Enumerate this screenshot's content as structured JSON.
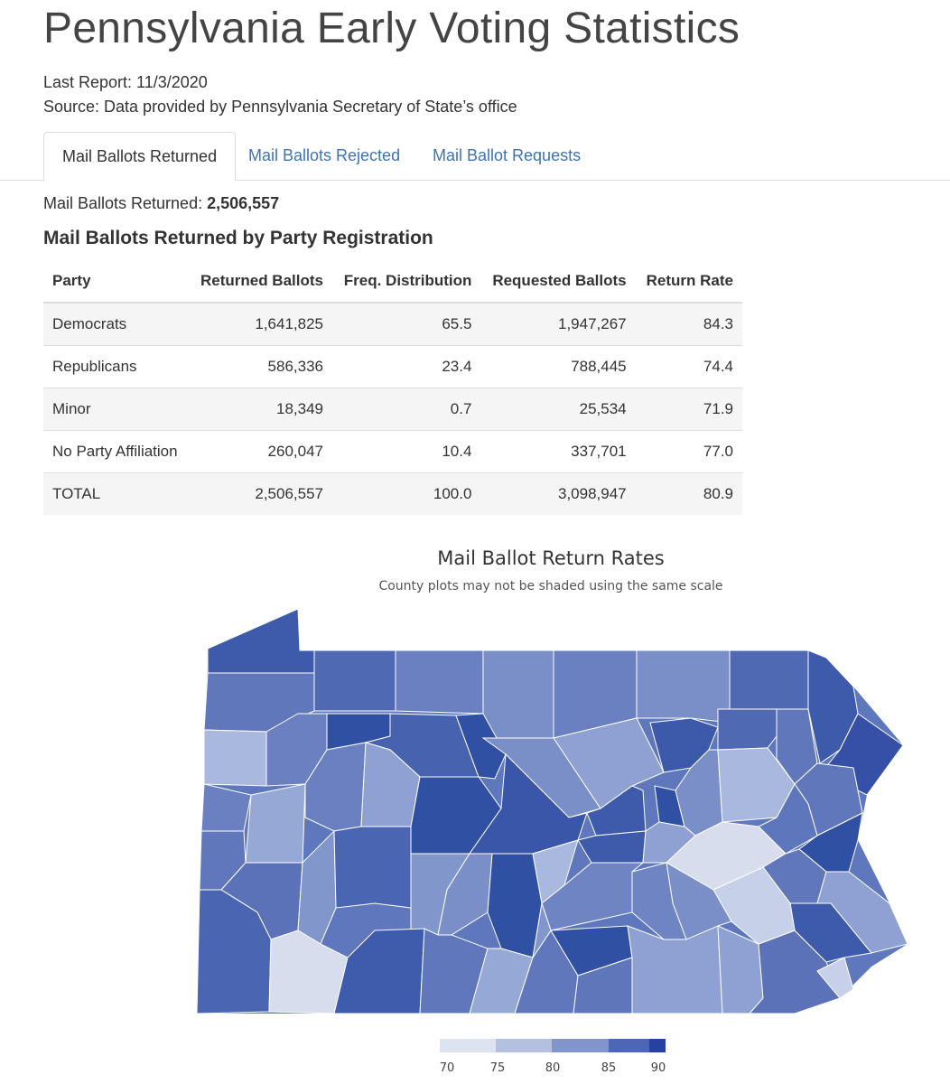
{
  "page": {
    "title": "Pennsylvania Early Voting Statistics",
    "last_report": "Last Report: 11/3/2020",
    "source": "Source: Data provided by Pennsylvania Secretary of State’s office"
  },
  "tabs": [
    {
      "label": "Mail Ballots Returned",
      "active": true
    },
    {
      "label": "Mail Ballots Rejected",
      "active": false
    },
    {
      "label": "Mail Ballot Requests",
      "active": false
    }
  ],
  "summary": {
    "label": "Mail Ballots Returned:",
    "value": "2,506,557"
  },
  "section_title": "Mail Ballots Returned by Party Registration",
  "table": {
    "headers": [
      "Party",
      "Returned Ballots",
      "Freq. Distribution",
      "Requested Ballots",
      "Return Rate"
    ],
    "rows": [
      [
        "Democrats",
        "1,641,825",
        "65.5",
        "1,947,267",
        "84.3"
      ],
      [
        "Republicans",
        "586,336",
        "23.4",
        "788,445",
        "74.4"
      ],
      [
        "Minor",
        "18,349",
        "0.7",
        "25,534",
        "71.9"
      ],
      [
        "No Party Affiliation",
        "260,047",
        "10.4",
        "337,701",
        "77.0"
      ],
      [
        "TOTAL",
        "2,506,557",
        "100.0",
        "3,098,947",
        "80.9"
      ]
    ]
  },
  "map": {
    "title": "Mail Ballot Return Rates",
    "subtitle": "County plots may not be shaded using the same scale",
    "legend_ticks": [
      "70",
      "75",
      "80",
      "85",
      "90"
    ],
    "colors": {
      "c70": "#dde3f0",
      "c75": "#b8c4e0",
      "c80": "#8fa3d1",
      "c85": "#6a83c1",
      "c88": "#4e69b4",
      "c90": "#2f4da3",
      "border": "#ffffff"
    }
  }
}
